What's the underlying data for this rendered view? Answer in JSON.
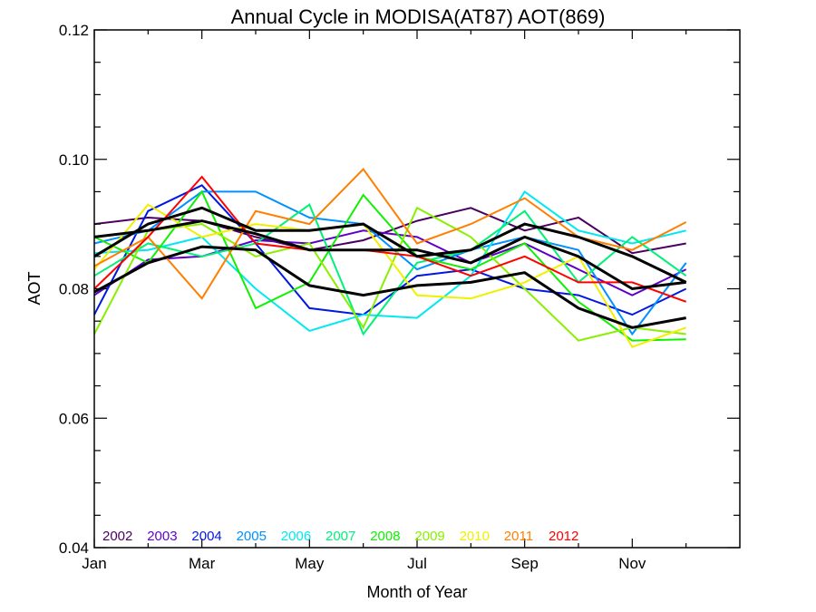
{
  "chart_data": {
    "type": "line",
    "title": "Annual Cycle in MODISA(AT87) AOT(869)",
    "xlabel": "Month of Year",
    "ylabel": "AOT",
    "xlim": [
      1,
      13
    ],
    "ylim": [
      0.04,
      0.12
    ],
    "x_ticks": [
      {
        "value": 1,
        "label": "Jan"
      },
      {
        "value": 3,
        "label": "Mar"
      },
      {
        "value": 5,
        "label": "May"
      },
      {
        "value": 7,
        "label": "Jul"
      },
      {
        "value": 9,
        "label": "Sep"
      },
      {
        "value": 11,
        "label": "Nov"
      }
    ],
    "x_minor_ticks": [
      2,
      4,
      6,
      8,
      10,
      12
    ],
    "y_ticks": [
      {
        "value": 0.04,
        "label": "0.04"
      },
      {
        "value": 0.06,
        "label": "0.06"
      },
      {
        "value": 0.08,
        "label": "0.08"
      },
      {
        "value": 0.1,
        "label": "0.10"
      },
      {
        "value": 0.12,
        "label": "0.12"
      }
    ],
    "y_minor_ticks": [
      0.045,
      0.05,
      0.055,
      0.065,
      0.07,
      0.075,
      0.085,
      0.09,
      0.095,
      0.105,
      0.11,
      0.115
    ],
    "x": [
      1,
      2,
      3,
      4,
      5,
      6,
      7,
      8,
      9,
      10,
      11,
      12
    ],
    "grid": false,
    "legend_placement": "bottom-left",
    "series": [
      {
        "name": "2002",
        "color": "#4b0060",
        "values": [
          0.09,
          0.091,
          0.0905,
          0.088,
          0.086,
          0.0875,
          0.0905,
          0.0925,
          0.089,
          0.091,
          0.0855,
          0.087
        ]
      },
      {
        "name": "2003",
        "color": "#5e00c8",
        "values": [
          0.079,
          0.0845,
          0.085,
          0.0875,
          0.087,
          0.089,
          0.088,
          0.084,
          0.087,
          0.083,
          0.079,
          0.083
        ]
      },
      {
        "name": "2004",
        "color": "#0018e0",
        "values": [
          0.076,
          0.092,
          0.096,
          0.087,
          0.077,
          0.076,
          0.082,
          0.083,
          0.08,
          0.079,
          0.076,
          0.08
        ]
      },
      {
        "name": "2005",
        "color": "#0090ff",
        "values": [
          0.087,
          0.089,
          0.095,
          0.095,
          0.091,
          0.09,
          0.083,
          0.086,
          0.088,
          0.086,
          0.073,
          0.084
        ]
      },
      {
        "name": "2006",
        "color": "#00e8f0",
        "values": [
          0.0855,
          0.086,
          0.088,
          0.08,
          0.0735,
          0.076,
          0.0755,
          0.082,
          0.095,
          0.089,
          0.087,
          0.089
        ]
      },
      {
        "name": "2007",
        "color": "#00f078",
        "values": [
          0.082,
          0.087,
          0.085,
          0.087,
          0.093,
          0.073,
          0.084,
          0.086,
          0.092,
          0.081,
          0.088,
          0.082
        ]
      },
      {
        "name": "2008",
        "color": "#10f000",
        "values": [
          0.088,
          0.084,
          0.095,
          0.077,
          0.081,
          0.0945,
          0.085,
          0.083,
          0.087,
          0.078,
          0.072,
          0.0722
        ]
      },
      {
        "name": "2009",
        "color": "#88f000",
        "values": [
          0.073,
          0.089,
          0.09,
          0.085,
          0.087,
          0.074,
          0.0925,
          0.088,
          0.08,
          0.072,
          0.074,
          0.073
        ]
      },
      {
        "name": "2010",
        "color": "#f0f000",
        "values": [
          0.083,
          0.093,
          0.088,
          0.09,
          0.089,
          0.09,
          0.079,
          0.0785,
          0.081,
          0.085,
          0.071,
          0.074
        ]
      },
      {
        "name": "2011",
        "color": "#ff7f00",
        "values": [
          0.0835,
          0.088,
          0.0785,
          0.092,
          0.09,
          0.0985,
          0.087,
          0.09,
          0.094,
          0.088,
          0.086,
          0.0903
        ]
      },
      {
        "name": "2012",
        "color": "#ff0000",
        "values": [
          0.08,
          0.088,
          0.0973,
          0.087,
          0.086,
          0.086,
          0.085,
          0.082,
          0.085,
          0.081,
          0.081,
          0.078
        ]
      },
      {
        "color": "#000000",
        "values": [
          0.085,
          0.09,
          0.0925,
          0.089,
          0.089,
          0.09,
          0.085,
          0.086,
          0.09,
          0.088,
          0.085,
          0.081
        ]
      },
      {
        "color": "#000000",
        "values": [
          0.088,
          0.089,
          0.0905,
          0.0885,
          0.086,
          0.086,
          0.086,
          0.084,
          0.088,
          0.085,
          0.08,
          0.081
        ]
      },
      {
        "color": "#000000",
        "values": [
          0.0795,
          0.084,
          0.0865,
          0.086,
          0.0805,
          0.079,
          0.0805,
          0.081,
          0.0825,
          0.077,
          0.074,
          0.0755
        ]
      }
    ]
  }
}
